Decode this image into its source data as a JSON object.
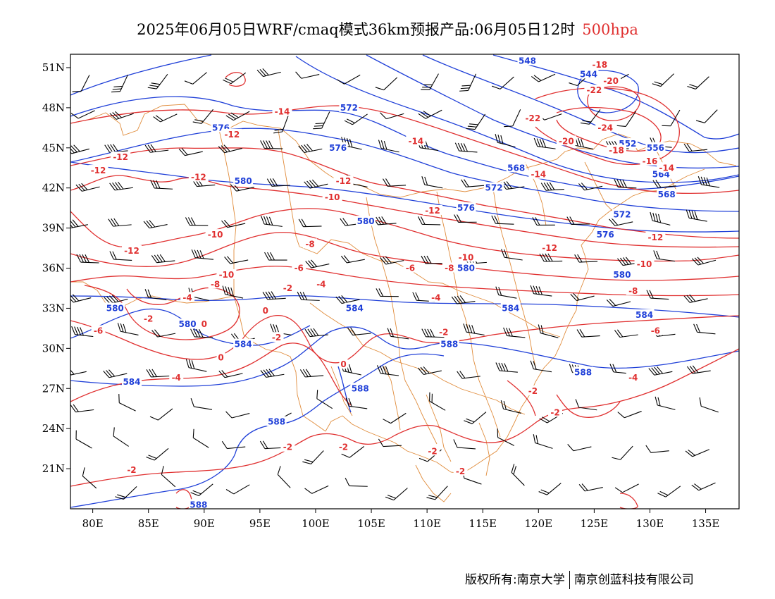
{
  "title": {
    "text": "2025年06月05日WRF/cmaq模式36km预报产品:06月05日12时",
    "level": "500hpa"
  },
  "map": {
    "lon_range": [
      78,
      138
    ],
    "lat_range": [
      18,
      52
    ],
    "x_ticks": [
      "80E",
      "85E",
      "90E",
      "95E",
      "100E",
      "105E",
      "110E",
      "115E",
      "120E",
      "125E",
      "130E",
      "135E"
    ],
    "y_ticks": [
      "51N",
      "48N",
      "45N",
      "42N",
      "39N",
      "36N",
      "33N",
      "30N",
      "27N",
      "24N",
      "21N"
    ],
    "colors": {
      "geopotential": "#2040d8",
      "temperature": "#e03030",
      "borders": "#e08c3c",
      "wind_barbs": "#000000"
    },
    "geopotential_labels": [
      {
        "text": "544",
        "lon": 124.5,
        "lat": 50.5
      },
      {
        "text": "548",
        "lon": 119,
        "lat": 51.5
      },
      {
        "text": "552",
        "lon": 128,
        "lat": 45.3
      },
      {
        "text": "556",
        "lon": 130.5,
        "lat": 45
      },
      {
        "text": "564",
        "lon": 131,
        "lat": 43
      },
      {
        "text": "568",
        "lon": 118,
        "lat": 43.5
      },
      {
        "text": "568",
        "lon": 131.5,
        "lat": 41.5
      },
      {
        "text": "572",
        "lon": 103,
        "lat": 48
      },
      {
        "text": "572",
        "lon": 116,
        "lat": 42
      },
      {
        "text": "572",
        "lon": 127.5,
        "lat": 40
      },
      {
        "text": "576",
        "lon": 91.5,
        "lat": 46.5
      },
      {
        "text": "576",
        "lon": 102,
        "lat": 45
      },
      {
        "text": "576",
        "lon": 113.5,
        "lat": 40.5
      },
      {
        "text": "576",
        "lon": 126,
        "lat": 38.5
      },
      {
        "text": "580",
        "lon": 93.5,
        "lat": 42.5
      },
      {
        "text": "580",
        "lon": 104.5,
        "lat": 39.5
      },
      {
        "text": "580",
        "lon": 113.5,
        "lat": 36
      },
      {
        "text": "580",
        "lon": 127.5,
        "lat": 35.5
      },
      {
        "text": "580",
        "lon": 82,
        "lat": 33
      },
      {
        "text": "580",
        "lon": 88.5,
        "lat": 31.8
      },
      {
        "text": "584",
        "lon": 103.5,
        "lat": 33
      },
      {
        "text": "584",
        "lon": 117.5,
        "lat": 33
      },
      {
        "text": "584",
        "lon": 129.5,
        "lat": 32.5
      },
      {
        "text": "584",
        "lon": 93.5,
        "lat": 30.3
      },
      {
        "text": "584",
        "lon": 83.5,
        "lat": 27.5
      },
      {
        "text": "588",
        "lon": 112,
        "lat": 30.3
      },
      {
        "text": "588",
        "lon": 124,
        "lat": 28.2
      },
      {
        "text": "588",
        "lon": 104,
        "lat": 27
      },
      {
        "text": "588",
        "lon": 96.5,
        "lat": 24.5
      },
      {
        "text": "588",
        "lon": 89.5,
        "lat": 18.3
      }
    ],
    "temperature_labels": [
      {
        "text": "-18",
        "lon": 125.5,
        "lat": 51.2
      },
      {
        "text": "-20",
        "lon": 126.5,
        "lat": 50
      },
      {
        "text": "-22",
        "lon": 125,
        "lat": 49.3
      },
      {
        "text": "-22",
        "lon": 119.5,
        "lat": 47.2
      },
      {
        "text": "-24",
        "lon": 126,
        "lat": 46.5
      },
      {
        "text": "-20",
        "lon": 122.5,
        "lat": 45.5
      },
      {
        "text": "-18",
        "lon": 127,
        "lat": 44.8
      },
      {
        "text": "-16",
        "lon": 130,
        "lat": 44
      },
      {
        "text": "-14",
        "lon": 131.5,
        "lat": 43.5
      },
      {
        "text": "-14",
        "lon": 97,
        "lat": 47.7
      },
      {
        "text": "-14",
        "lon": 109,
        "lat": 45.5
      },
      {
        "text": "-14",
        "lon": 120,
        "lat": 43
      },
      {
        "text": "-12",
        "lon": 82.5,
        "lat": 44.3
      },
      {
        "text": "-12",
        "lon": 80.5,
        "lat": 43.3
      },
      {
        "text": "-12",
        "lon": 92.5,
        "lat": 46
      },
      {
        "text": "-12",
        "lon": 89.5,
        "lat": 42.8
      },
      {
        "text": "-12",
        "lon": 102.5,
        "lat": 42.5
      },
      {
        "text": "-12",
        "lon": 110.5,
        "lat": 40.3
      },
      {
        "text": "-12",
        "lon": 130.5,
        "lat": 38.3
      },
      {
        "text": "-12",
        "lon": 83.5,
        "lat": 37.3
      },
      {
        "text": "-12",
        "lon": 121,
        "lat": 37.5
      },
      {
        "text": "-10",
        "lon": 101.5,
        "lat": 41.3
      },
      {
        "text": "-10",
        "lon": 91,
        "lat": 38.5
      },
      {
        "text": "-10",
        "lon": 113.5,
        "lat": 36.8
      },
      {
        "text": "-10",
        "lon": 129.5,
        "lat": 36.3
      },
      {
        "text": "-10",
        "lon": 92,
        "lat": 35.5
      },
      {
        "text": "-8",
        "lon": 99.5,
        "lat": 37.8
      },
      {
        "text": "-8",
        "lon": 112,
        "lat": 36
      },
      {
        "text": "-8",
        "lon": 128.5,
        "lat": 34.3
      },
      {
        "text": "-8",
        "lon": 91,
        "lat": 34.8
      },
      {
        "text": "-6",
        "lon": 98.5,
        "lat": 36
      },
      {
        "text": "-6",
        "lon": 108.5,
        "lat": 36
      },
      {
        "text": "-6",
        "lon": 80.5,
        "lat": 31.3
      },
      {
        "text": "-6",
        "lon": 130.5,
        "lat": 31.3
      },
      {
        "text": "-4",
        "lon": 88.5,
        "lat": 33.8
      },
      {
        "text": "-4",
        "lon": 100.5,
        "lat": 34.8
      },
      {
        "text": "-4",
        "lon": 110.8,
        "lat": 33.8
      },
      {
        "text": "-4",
        "lon": 87.5,
        "lat": 27.8
      },
      {
        "text": "-4",
        "lon": 128.5,
        "lat": 27.8
      },
      {
        "text": "-2",
        "lon": 97.5,
        "lat": 34.5
      },
      {
        "text": "-2",
        "lon": 85,
        "lat": 32.2
      },
      {
        "text": "-2",
        "lon": 96.5,
        "lat": 30.8
      },
      {
        "text": "-2",
        "lon": 111.5,
        "lat": 31.2
      },
      {
        "text": "-2",
        "lon": 119.5,
        "lat": 26.8
      },
      {
        "text": "-2",
        "lon": 121.5,
        "lat": 25.2
      },
      {
        "text": "-2",
        "lon": 97.5,
        "lat": 22.6
      },
      {
        "text": "-2",
        "lon": 102.5,
        "lat": 22.6
      },
      {
        "text": "-2",
        "lon": 110.5,
        "lat": 22.3
      },
      {
        "text": "-2",
        "lon": 113,
        "lat": 20.8
      },
      {
        "text": "-2",
        "lon": 83.5,
        "lat": 20.9
      },
      {
        "text": "0",
        "lon": 95.5,
        "lat": 32.8
      },
      {
        "text": "0",
        "lon": 90,
        "lat": 31.8
      },
      {
        "text": "0",
        "lon": 91.5,
        "lat": 29.3
      },
      {
        "text": "0",
        "lon": 102.5,
        "lat": 28.8
      }
    ]
  },
  "copyright": {
    "left": "版权所有:南京大学",
    "right": "南京创蓝科技有限公司"
  }
}
